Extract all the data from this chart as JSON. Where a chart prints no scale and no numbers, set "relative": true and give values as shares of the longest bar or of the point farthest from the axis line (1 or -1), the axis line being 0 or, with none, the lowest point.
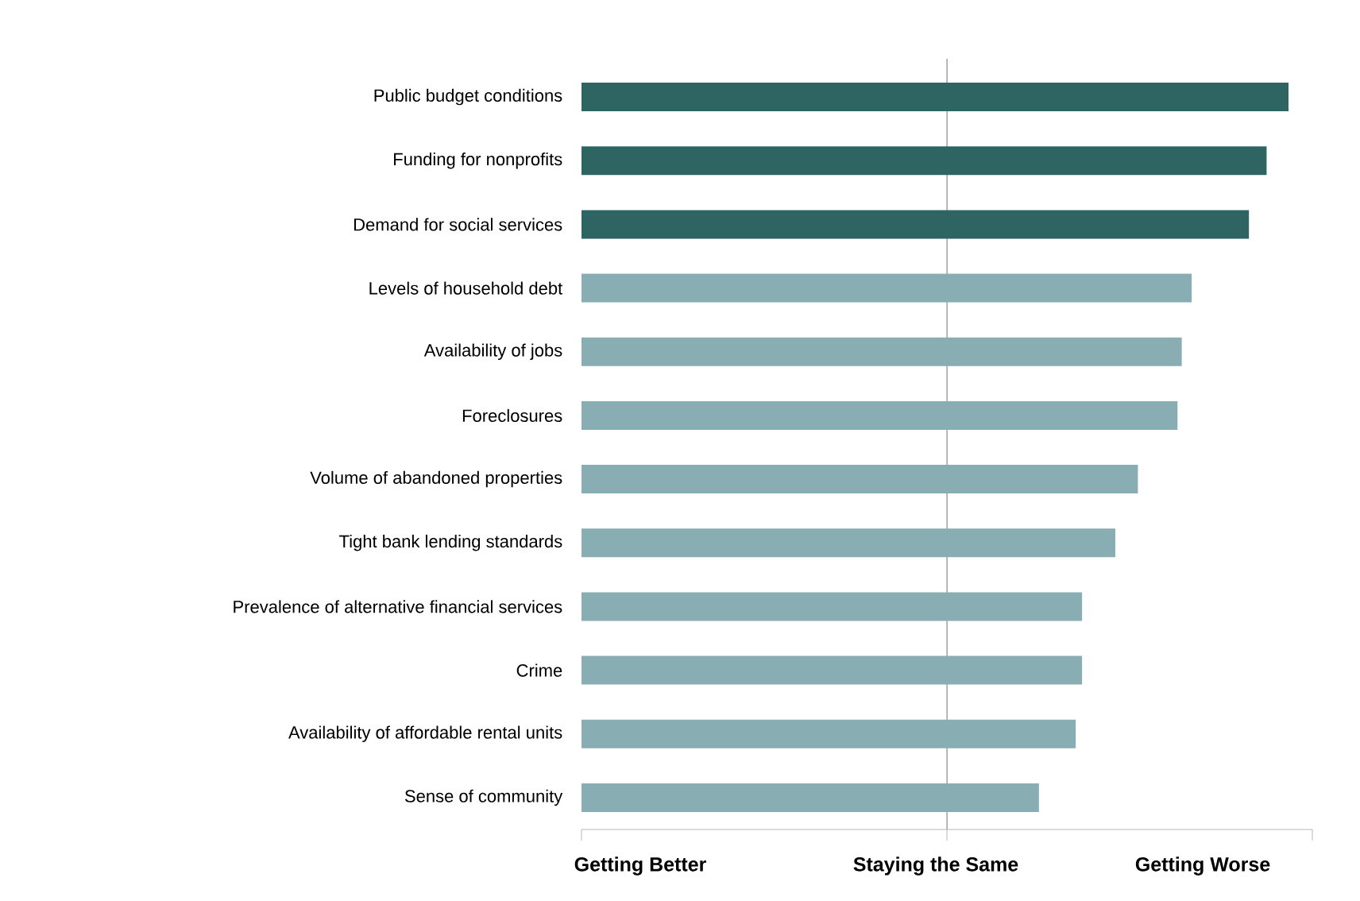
{
  "chart_data": {
    "type": "bar",
    "orientation": "horizontal",
    "relative": true,
    "categories": [
      "Public budget conditions",
      "Funding for nonprofits",
      "Demand for social services",
      "Levels of household debt",
      "Availability of jobs",
      "Foreclosures",
      "Volume of abandoned properties",
      "Tight bank lending standards",
      "Prevalence of alternative financial services",
      "Crime",
      "Availability of affordable rental units",
      "Sense of community"
    ],
    "values": [
      1,
      0.969,
      0.944,
      0.863,
      0.849,
      0.843,
      0.787,
      0.755,
      0.708,
      0.708,
      0.699,
      0.647
    ],
    "colors": [
      "#2e6563",
      "#2e6563",
      "#2e6563",
      "#88adb3",
      "#88adb3",
      "#88adb3",
      "#88adb3",
      "#88adb3",
      "#88adb3",
      "#88adb3",
      "#88adb3",
      "#88adb3"
    ],
    "annotations": [
      "Getting Better",
      "Staying the Same",
      "Getting Worse"
    ],
    "ref_lines": [
      {
        "axis": "x",
        "value": 0.517,
        "color": "#a6a6a6"
      }
    ]
  }
}
